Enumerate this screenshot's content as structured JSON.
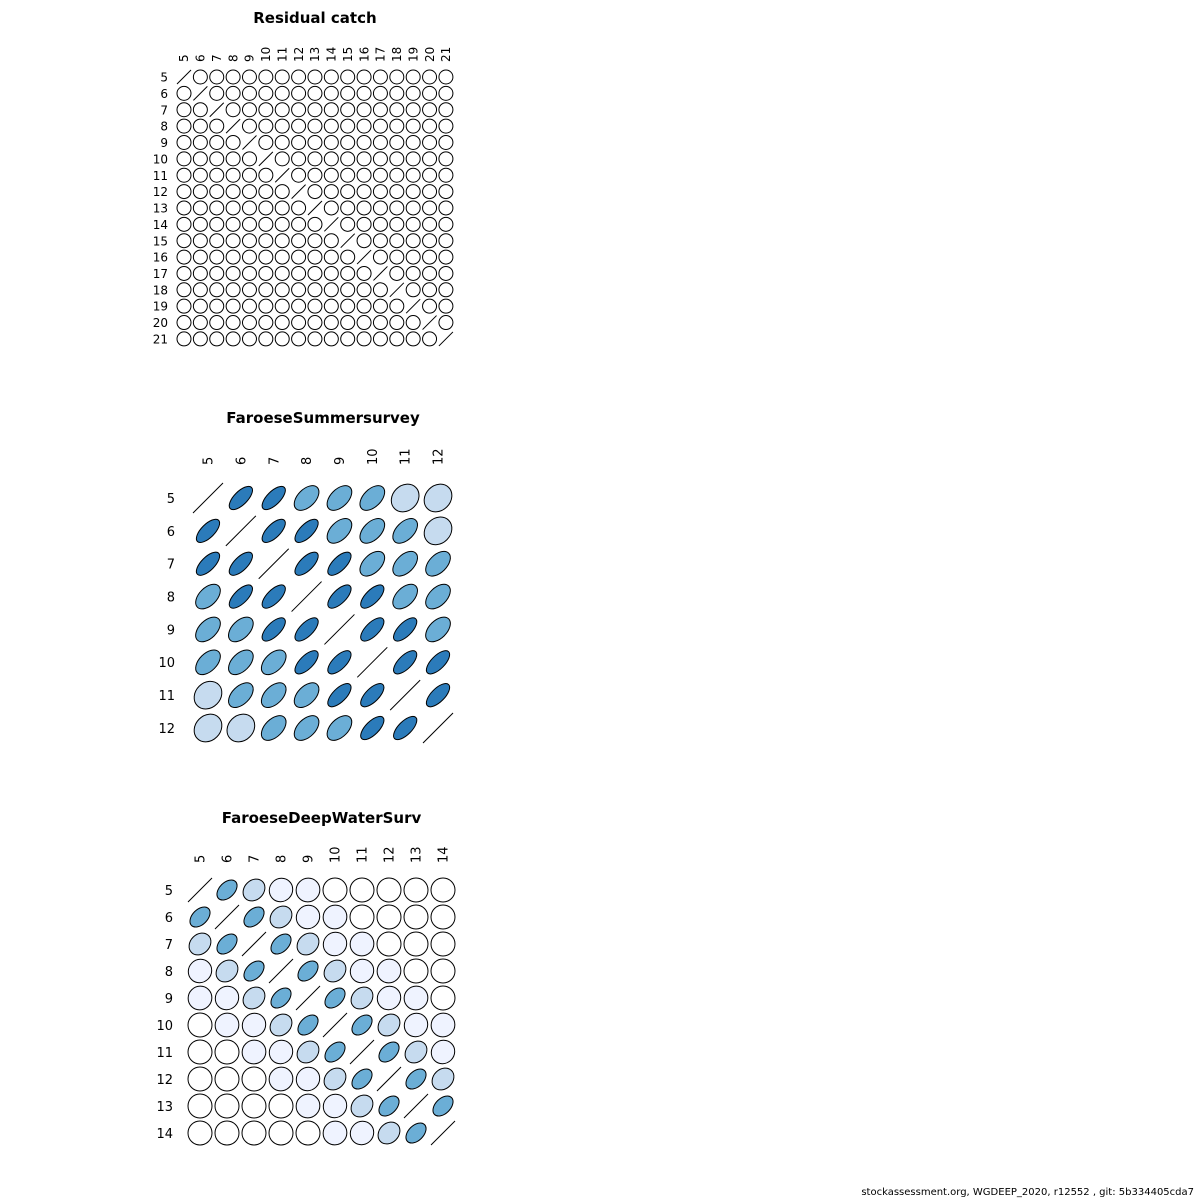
{
  "footer": "stockassessment.org, WGDEEP_2020, r12552 , git: 5b334405cda7",
  "chart_data": [
    {
      "type": "heatmap",
      "title": "Residual catch",
      "ages": [
        "5",
        "6",
        "7",
        "8",
        "9",
        "10",
        "11",
        "12",
        "13",
        "14",
        "15",
        "16",
        "17",
        "18",
        "19",
        "20",
        "21"
      ],
      "correlation_rule": "all off-diagonal correlations 0 (circles)",
      "lag_correlations": [
        0
      ],
      "legend": "none",
      "grid": false
    },
    {
      "type": "heatmap",
      "title": "FaroeseSummersurvey",
      "ages": [
        "5",
        "6",
        "7",
        "8",
        "9",
        "10",
        "11",
        "12"
      ],
      "matrix": [
        [
          1.0,
          0.8,
          0.8,
          0.65,
          0.65,
          0.65,
          0.3,
          0.3
        ],
        [
          0.8,
          1.0,
          0.8,
          0.8,
          0.65,
          0.65,
          0.65,
          0.3
        ],
        [
          0.8,
          0.8,
          1.0,
          0.8,
          0.8,
          0.65,
          0.65,
          0.65
        ],
        [
          0.65,
          0.8,
          0.8,
          1.0,
          0.8,
          0.8,
          0.65,
          0.65
        ],
        [
          0.65,
          0.65,
          0.8,
          0.8,
          1.0,
          0.8,
          0.8,
          0.65
        ],
        [
          0.65,
          0.65,
          0.65,
          0.8,
          0.8,
          1.0,
          0.8,
          0.8
        ],
        [
          0.3,
          0.65,
          0.65,
          0.65,
          0.8,
          0.8,
          1.0,
          0.8
        ],
        [
          0.3,
          0.3,
          0.65,
          0.65,
          0.65,
          0.8,
          0.8,
          1.0
        ]
      ],
      "legend": "none",
      "grid": false
    },
    {
      "type": "heatmap",
      "title": "FaroeseDeepWaterSurv",
      "ages": [
        "5",
        "6",
        "7",
        "8",
        "9",
        "10",
        "11",
        "12",
        "13",
        "14"
      ],
      "correlation_rule": "correlation depends on lag |i-j|",
      "lag_correlations": [
        1.0,
        0.6,
        0.35,
        0.1,
        0.05,
        0.0,
        0.0,
        0.0,
        0.0,
        0.0
      ],
      "legend": "none",
      "grid": false
    }
  ],
  "colors": {
    "strong": "#2b7bba",
    "medium": "#6baed6",
    "light": "#c6dbef",
    "faint": "#eff3ff",
    "none": "#ffffff"
  }
}
